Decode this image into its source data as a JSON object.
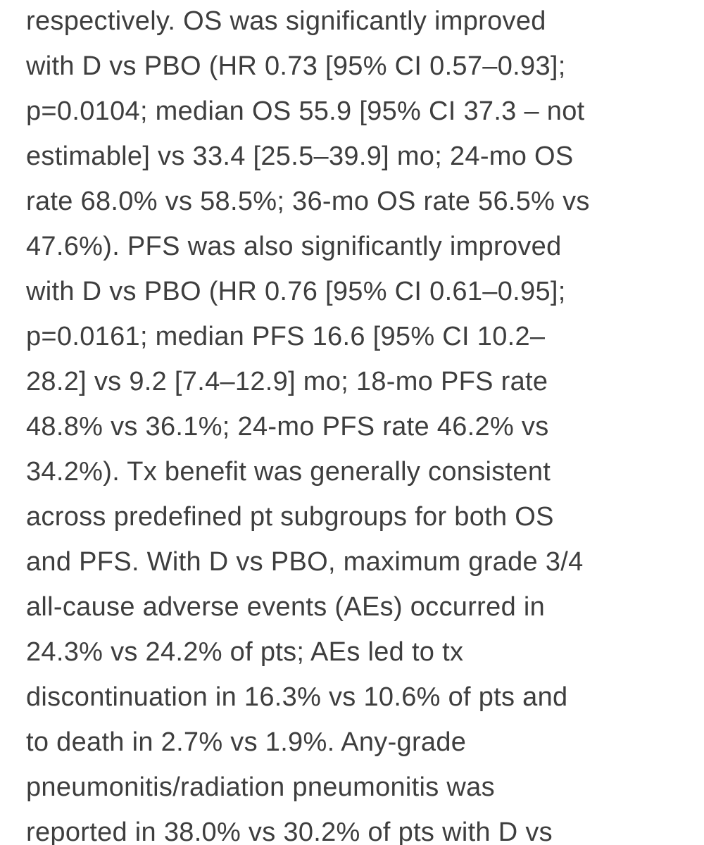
{
  "document": {
    "lines": [
      "respectively. OS was significantly improved",
      "with D vs PBO (HR 0.73 [95% CI 0.57–0.93];",
      "p=0.0104; median OS 55.9 [95% CI 37.3 – not",
      "estimable] vs 33.4 [25.5–39.9] mo; 24-mo OS",
      "rate 68.0% vs 58.5%; 36-mo OS rate 56.5% vs",
      "47.6%). PFS was also significantly improved",
      "with D vs PBO (HR 0.76 [95% CI 0.61–0.95];",
      "p=0.0161; median PFS 16.6 [95% CI 10.2–",
      "28.2] vs 9.2 [7.4–12.9] mo; 18-mo PFS rate",
      "48.8% vs 36.1%; 24-mo PFS rate 46.2% vs",
      "34.2%). Tx benefit was generally consistent",
      "across predefined pt subgroups for both OS",
      "and PFS. With D vs PBO, maximum grade 3/4",
      "all-cause adverse events (AEs) occurred in",
      "24.3% vs 24.2% of pts; AEs led to tx",
      "discontinuation in 16.3% vs 10.6% of pts and",
      "to death in 2.7% vs 1.9%. Any-grade",
      "pneumonitis/radiation pneumonitis was",
      "reported in 38.0% vs 30.2% of pts with D vs"
    ]
  }
}
